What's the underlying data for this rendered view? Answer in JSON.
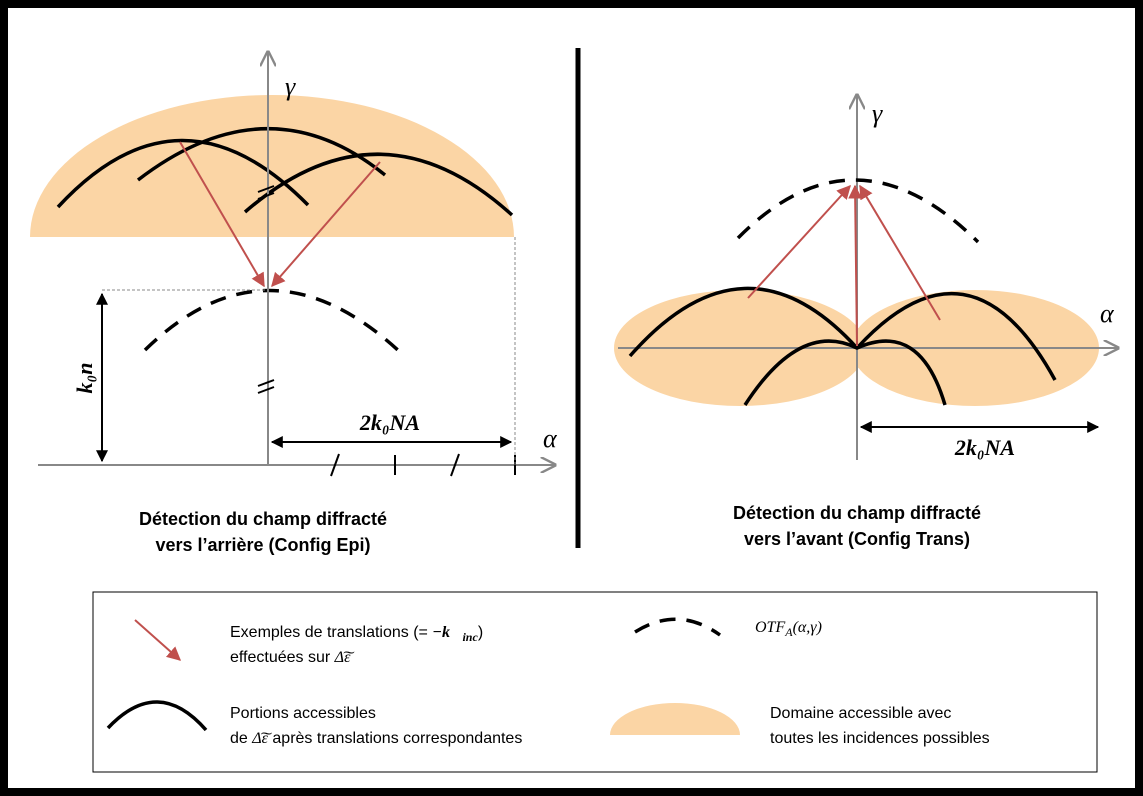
{
  "left": {
    "axis_y": "γ",
    "axis_x": "α",
    "height_label": "k₀n",
    "width_label": "2k₀NA",
    "caption": [
      "Détection du champ diffracté",
      "vers l’arrière (Config Epi)"
    ]
  },
  "right": {
    "axis_y": "γ",
    "axis_x": "α",
    "width_label": "2k₀NA",
    "caption": [
      "Détection du champ diffracté",
      "vers l’avant (Config Trans)"
    ]
  },
  "legend": {
    "arrow": {
      "line1": "Exemples de translations (=",
      "math": "−k⃗",
      "sub": "inc",
      "close": ")",
      "line2": "effectuées sur",
      "symbol": "Δ͠ε"
    },
    "dashed": {
      "math": "OTF",
      "sub": "A",
      "args": "(α,γ)"
    },
    "arc": {
      "line1": "Portions accessibles",
      "pre": "de",
      "symbol": "Δ͠ε",
      "line2": "après translations correspondantes"
    },
    "domain": {
      "line1": "Domaine accessible avec",
      "line2": "toutes les incidences possibles"
    }
  }
}
